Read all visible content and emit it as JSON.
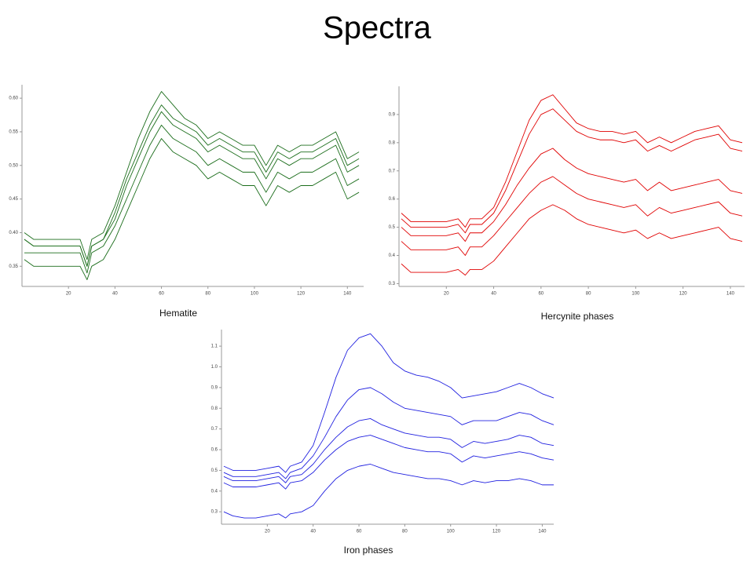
{
  "title": "Spectra",
  "chart_data": [
    {
      "type": "line",
      "caption": "Hematite",
      "color": "#1b6d1b",
      "xlim": [
        0,
        147
      ],
      "ylim": [
        0.32,
        0.62
      ],
      "xticks": [
        20,
        40,
        60,
        80,
        100,
        120,
        140
      ],
      "yticks": [
        0.35,
        {
          "value": 0.4,
          "label": "0.40"
        },
        0.45,
        {
          "value": 0.5,
          "label": "0.50"
        },
        0.55,
        {
          "value": 0.6,
          "label": "0.60"
        }
      ],
      "x": [
        1,
        5,
        10,
        15,
        20,
        25,
        28,
        30,
        35,
        40,
        45,
        50,
        55,
        60,
        65,
        70,
        75,
        80,
        85,
        90,
        95,
        100,
        105,
        110,
        115,
        120,
        125,
        130,
        135,
        140,
        145
      ],
      "series": [
        {
          "values": [
            0.4,
            0.39,
            0.39,
            0.39,
            0.39,
            0.39,
            0.36,
            0.39,
            0.4,
            0.44,
            0.49,
            0.54,
            0.58,
            0.61,
            0.59,
            0.57,
            0.56,
            0.54,
            0.55,
            0.54,
            0.53,
            0.53,
            0.5,
            0.53,
            0.52,
            0.53,
            0.53,
            0.54,
            0.55,
            0.51,
            0.52
          ]
        },
        {
          "values": [
            0.39,
            0.38,
            0.38,
            0.38,
            0.38,
            0.38,
            0.35,
            0.38,
            0.39,
            0.43,
            0.48,
            0.52,
            0.56,
            0.59,
            0.57,
            0.56,
            0.55,
            0.53,
            0.54,
            0.53,
            0.52,
            0.52,
            0.49,
            0.52,
            0.51,
            0.52,
            0.52,
            0.53,
            0.54,
            0.5,
            0.51
          ]
        },
        {
          "values": [
            0.39,
            0.38,
            0.38,
            0.38,
            0.38,
            0.38,
            0.35,
            0.38,
            0.39,
            0.42,
            0.47,
            0.51,
            0.55,
            0.58,
            0.56,
            0.55,
            0.54,
            0.52,
            0.53,
            0.52,
            0.51,
            0.51,
            0.48,
            0.51,
            0.5,
            0.51,
            0.51,
            0.52,
            0.53,
            0.49,
            0.5
          ]
        },
        {
          "values": [
            0.37,
            0.37,
            0.37,
            0.37,
            0.37,
            0.37,
            0.34,
            0.37,
            0.38,
            0.41,
            0.45,
            0.49,
            0.53,
            0.56,
            0.54,
            0.53,
            0.52,
            0.5,
            0.51,
            0.5,
            0.49,
            0.49,
            0.46,
            0.49,
            0.48,
            0.49,
            0.49,
            0.5,
            0.51,
            0.47,
            0.48
          ]
        },
        {
          "values": [
            0.36,
            0.35,
            0.35,
            0.35,
            0.35,
            0.35,
            0.33,
            0.35,
            0.36,
            0.39,
            0.43,
            0.47,
            0.51,
            0.54,
            0.52,
            0.51,
            0.5,
            0.48,
            0.49,
            0.48,
            0.47,
            0.47,
            0.44,
            0.47,
            0.46,
            0.47,
            0.47,
            0.48,
            0.49,
            0.45,
            0.46
          ]
        }
      ]
    },
    {
      "type": "line",
      "caption": "Hercynite phases",
      "color": "#e00000",
      "xlim": [
        0,
        146
      ],
      "ylim": [
        0.29,
        1.0
      ],
      "xticks": [
        20,
        40,
        60,
        80,
        100,
        120,
        140
      ],
      "yticks": [
        0.3,
        0.4,
        0.5,
        0.6,
        0.7,
        0.8,
        0.9
      ],
      "x": [
        1,
        5,
        10,
        15,
        20,
        25,
        28,
        30,
        35,
        40,
        45,
        50,
        55,
        60,
        65,
        70,
        75,
        80,
        85,
        90,
        95,
        100,
        105,
        110,
        115,
        120,
        125,
        130,
        135,
        140,
        145
      ],
      "series": [
        {
          "values": [
            0.55,
            0.52,
            0.52,
            0.52,
            0.52,
            0.53,
            0.5,
            0.53,
            0.53,
            0.57,
            0.66,
            0.77,
            0.88,
            0.95,
            0.97,
            0.92,
            0.87,
            0.85,
            0.84,
            0.84,
            0.83,
            0.84,
            0.8,
            0.82,
            0.8,
            0.82,
            0.84,
            0.85,
            0.86,
            0.81,
            0.8
          ]
        },
        {
          "values": [
            0.53,
            0.5,
            0.5,
            0.5,
            0.5,
            0.51,
            0.48,
            0.51,
            0.51,
            0.55,
            0.63,
            0.73,
            0.83,
            0.9,
            0.92,
            0.88,
            0.84,
            0.82,
            0.81,
            0.81,
            0.8,
            0.81,
            0.77,
            0.79,
            0.77,
            0.79,
            0.81,
            0.82,
            0.83,
            0.78,
            0.77
          ]
        },
        {
          "values": [
            0.5,
            0.47,
            0.47,
            0.47,
            0.47,
            0.48,
            0.45,
            0.48,
            0.48,
            0.52,
            0.58,
            0.65,
            0.71,
            0.76,
            0.78,
            0.74,
            0.71,
            0.69,
            0.68,
            0.67,
            0.66,
            0.67,
            0.63,
            0.66,
            0.63,
            0.64,
            0.65,
            0.66,
            0.67,
            0.63,
            0.62
          ]
        },
        {
          "values": [
            0.45,
            0.42,
            0.42,
            0.42,
            0.42,
            0.43,
            0.4,
            0.43,
            0.43,
            0.47,
            0.52,
            0.57,
            0.62,
            0.66,
            0.68,
            0.65,
            0.62,
            0.6,
            0.59,
            0.58,
            0.57,
            0.58,
            0.54,
            0.57,
            0.55,
            0.56,
            0.57,
            0.58,
            0.59,
            0.55,
            0.54
          ]
        },
        {
          "values": [
            0.37,
            0.34,
            0.34,
            0.34,
            0.34,
            0.35,
            0.33,
            0.35,
            0.35,
            0.38,
            0.43,
            0.48,
            0.53,
            0.56,
            0.58,
            0.56,
            0.53,
            0.51,
            0.5,
            0.49,
            0.48,
            0.49,
            0.46,
            0.48,
            0.46,
            0.47,
            0.48,
            0.49,
            0.5,
            0.46,
            0.45
          ]
        }
      ]
    },
    {
      "type": "line",
      "caption": "Iron phases",
      "color": "#2020e0",
      "xlim": [
        0,
        145
      ],
      "ylim": [
        0.24,
        1.18
      ],
      "xticks": [
        20,
        40,
        60,
        80,
        100,
        120,
        140
      ],
      "yticks": [
        0.3,
        0.4,
        0.5,
        0.6,
        0.7,
        0.8,
        0.9,
        {
          "value": 1,
          "label": "1.0"
        },
        1.1
      ],
      "x": [
        1,
        5,
        10,
        15,
        20,
        25,
        28,
        30,
        35,
        40,
        45,
        50,
        55,
        60,
        65,
        70,
        75,
        80,
        85,
        90,
        95,
        100,
        105,
        110,
        115,
        120,
        125,
        130,
        135,
        140,
        145
      ],
      "series": [
        {
          "values": [
            0.52,
            0.5,
            0.5,
            0.5,
            0.51,
            0.52,
            0.49,
            0.52,
            0.54,
            0.62,
            0.78,
            0.95,
            1.08,
            1.14,
            1.16,
            1.1,
            1.02,
            0.98,
            0.96,
            0.95,
            0.93,
            0.9,
            0.85,
            0.86,
            0.87,
            0.88,
            0.9,
            0.92,
            0.9,
            0.87,
            0.85
          ]
        },
        {
          "values": [
            0.49,
            0.47,
            0.47,
            0.47,
            0.48,
            0.49,
            0.46,
            0.49,
            0.51,
            0.57,
            0.66,
            0.76,
            0.84,
            0.89,
            0.9,
            0.87,
            0.83,
            0.8,
            0.79,
            0.78,
            0.77,
            0.76,
            0.72,
            0.74,
            0.74,
            0.74,
            0.76,
            0.78,
            0.77,
            0.74,
            0.72
          ]
        },
        {
          "values": [
            0.47,
            0.45,
            0.45,
            0.45,
            0.46,
            0.47,
            0.44,
            0.47,
            0.48,
            0.53,
            0.6,
            0.66,
            0.71,
            0.74,
            0.75,
            0.72,
            0.7,
            0.68,
            0.67,
            0.66,
            0.66,
            0.65,
            0.61,
            0.64,
            0.63,
            0.64,
            0.65,
            0.67,
            0.66,
            0.63,
            0.62
          ]
        },
        {
          "values": [
            0.44,
            0.42,
            0.42,
            0.42,
            0.43,
            0.44,
            0.41,
            0.44,
            0.45,
            0.49,
            0.55,
            0.6,
            0.64,
            0.66,
            0.67,
            0.65,
            0.63,
            0.61,
            0.6,
            0.59,
            0.59,
            0.58,
            0.54,
            0.57,
            0.56,
            0.57,
            0.58,
            0.59,
            0.58,
            0.56,
            0.55
          ]
        },
        {
          "values": [
            0.3,
            0.28,
            0.27,
            0.27,
            0.28,
            0.29,
            0.27,
            0.29,
            0.3,
            0.33,
            0.4,
            0.46,
            0.5,
            0.52,
            0.53,
            0.51,
            0.49,
            0.48,
            0.47,
            0.46,
            0.46,
            0.45,
            0.43,
            0.45,
            0.44,
            0.45,
            0.45,
            0.46,
            0.45,
            0.43,
            0.43
          ]
        }
      ]
    }
  ]
}
